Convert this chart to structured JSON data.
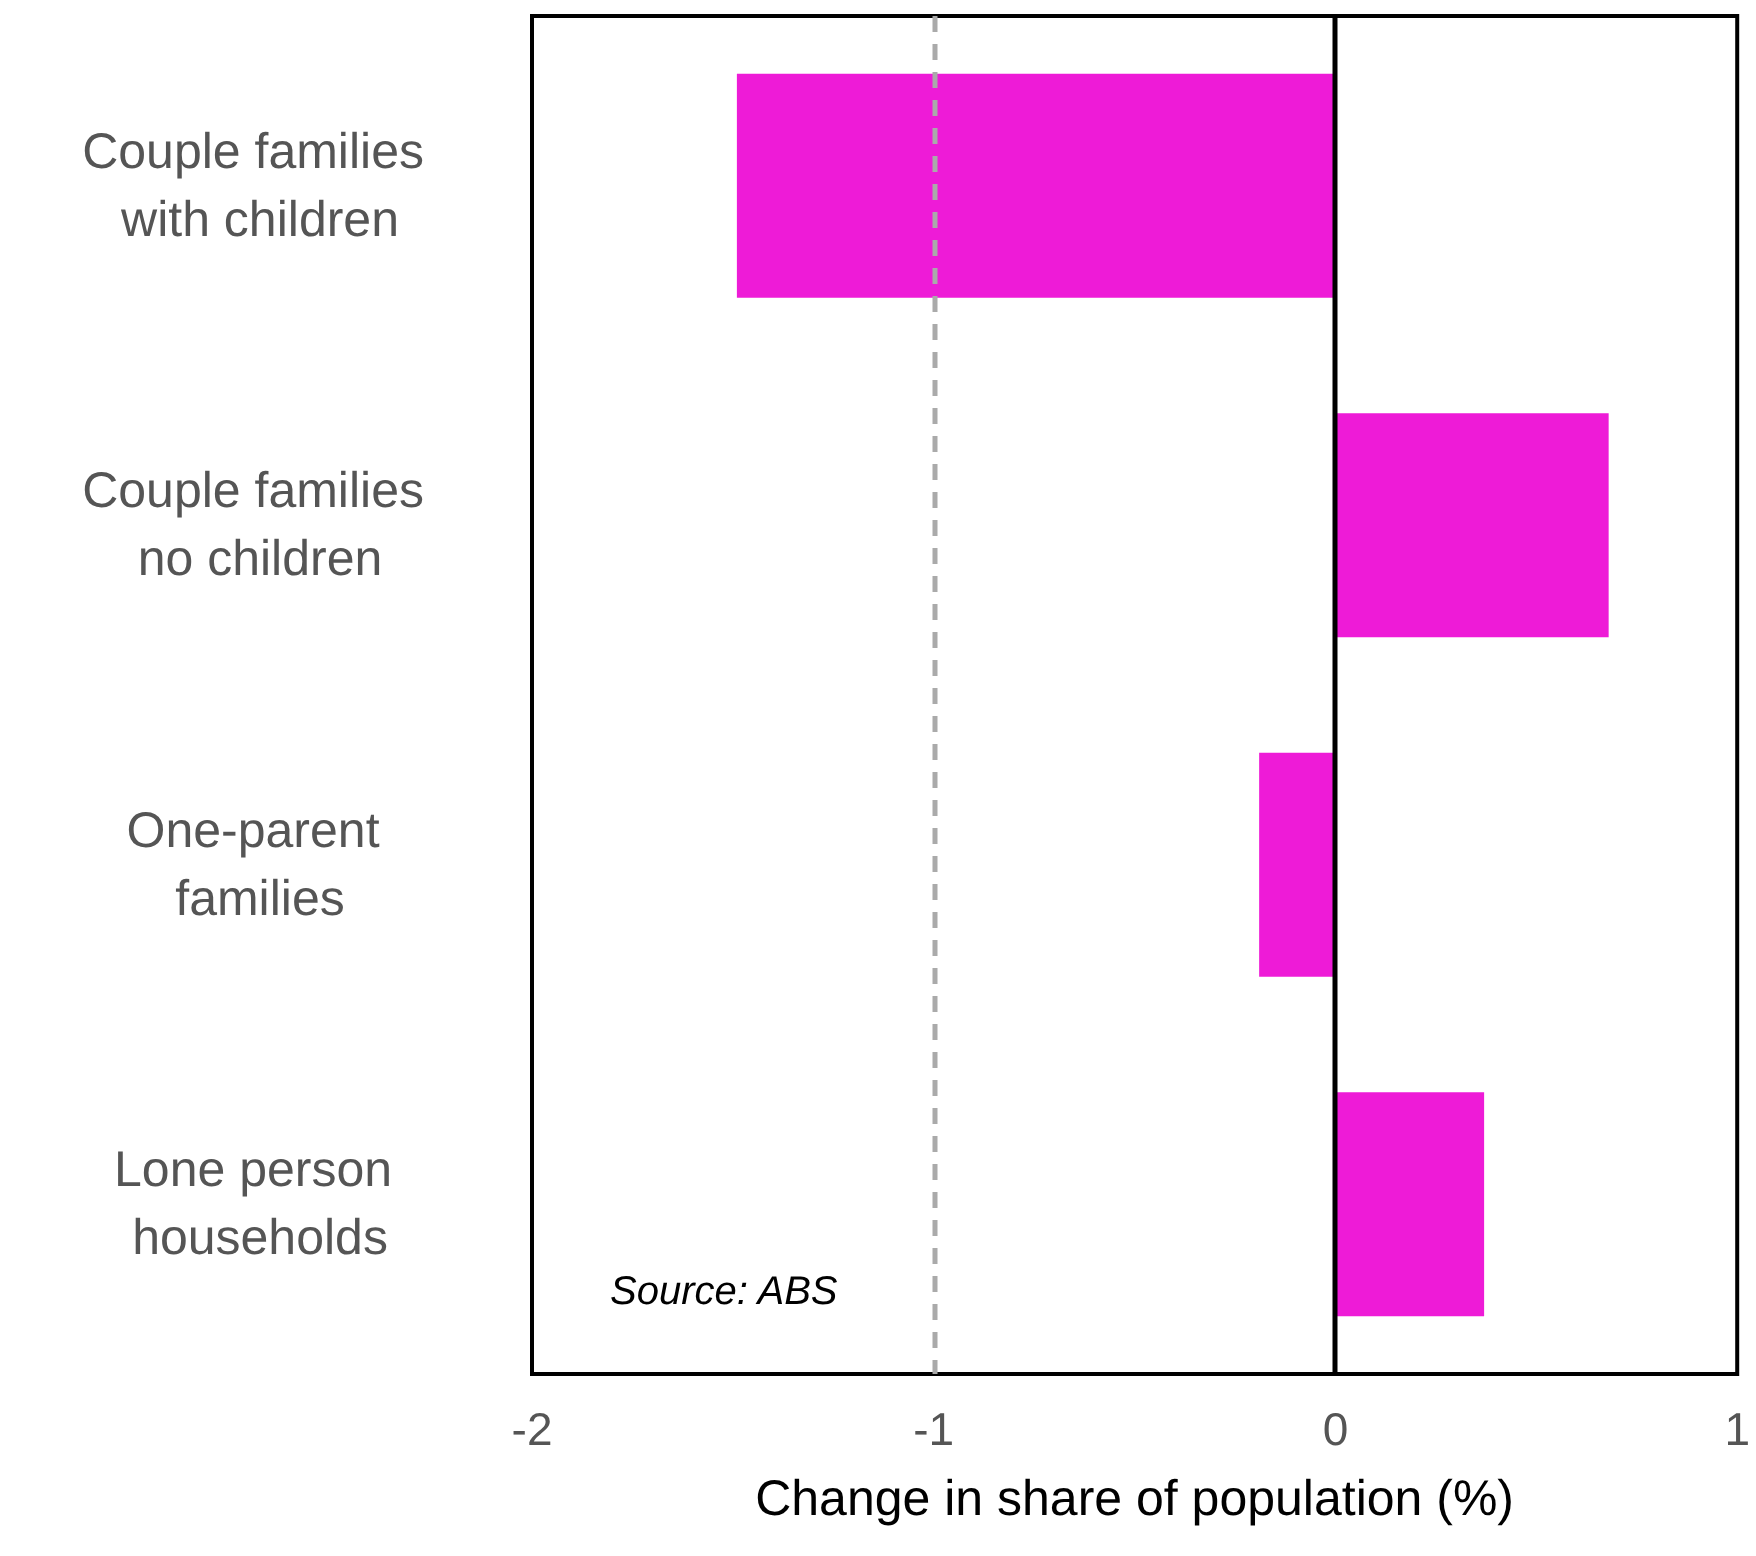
{
  "chart_data": {
    "type": "bar",
    "orientation": "horizontal",
    "xlabel": "Change in share of population (%)",
    "categories": [
      "Couple families with children",
      "Couple families no children",
      "One-parent families",
      "Lone person households"
    ],
    "values": [
      -1.49,
      0.68,
      -0.19,
      0.37
    ],
    "color": "#ee1bd7",
    "xlim": [
      -2,
      1
    ],
    "xticks": [
      -2,
      -1,
      0,
      1
    ],
    "grid": false,
    "ref_lines": [
      {
        "axis": "x",
        "value": -1,
        "label": null,
        "color": "#aaaaaa",
        "line_style": "dashed"
      },
      {
        "axis": "x",
        "value": 0,
        "label": null,
        "color": "#000000",
        "line_style": "solid"
      }
    ],
    "annotations": [
      "Source: ABS"
    ]
  }
}
